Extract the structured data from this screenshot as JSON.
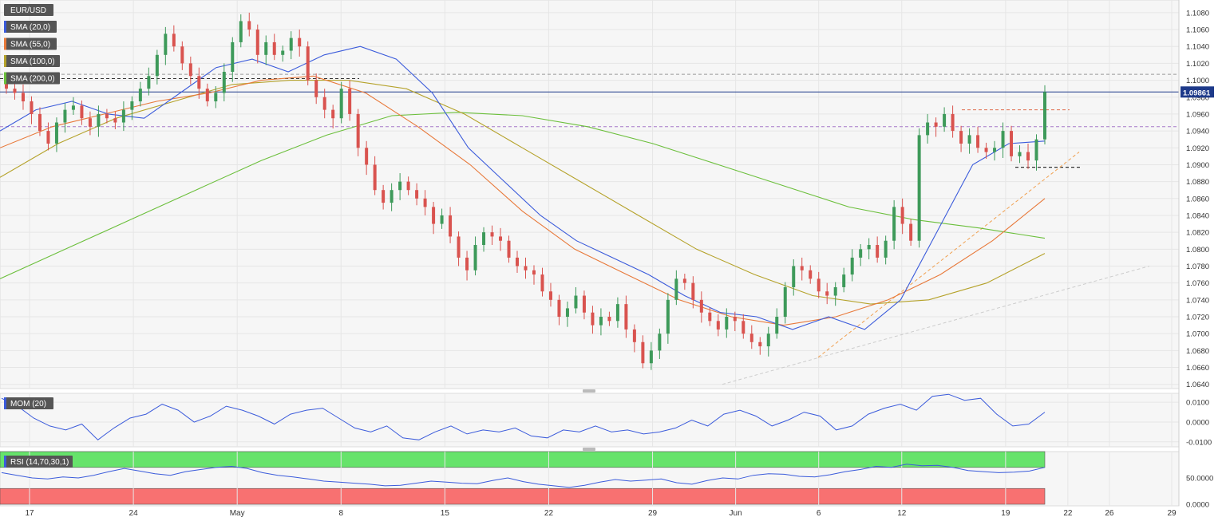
{
  "chart_data": [
    {
      "type": "candlestick",
      "title": "EUR/USD",
      "indicators": [
        {
          "name": "SMA (20,0)",
          "color": "#3b5bdb"
        },
        {
          "name": "SMA (55,0)",
          "color": "#e8793a"
        },
        {
          "name": "SMA (100,0)",
          "color": "#b5a22a"
        },
        {
          "name": "SMA (200,0)",
          "color": "#6bbf3b"
        }
      ],
      "ylim": [
        1.0635,
        1.1095
      ],
      "y_ticks": [
        "1.0640",
        "1.0660",
        "1.0680",
        "1.0700",
        "1.0720",
        "1.0740",
        "1.0760",
        "1.0780",
        "1.0800",
        "1.0820",
        "1.0840",
        "1.0860",
        "1.0880",
        "1.0900",
        "1.0920",
        "1.0940",
        "1.0960",
        "1.0980",
        "1.1000",
        "1.1020",
        "1.1040",
        "1.1060",
        "1.1080"
      ],
      "x_ticks": [
        {
          "label": "17",
          "day": 0
        },
        {
          "label": "24",
          "day": 5
        },
        {
          "label": "May",
          "day": 10
        },
        {
          "label": "8",
          "day": 15
        },
        {
          "label": "15",
          "day": 20
        },
        {
          "label": "22",
          "day": 25
        },
        {
          "label": "29",
          "day": 30
        },
        {
          "label": "Jun",
          "day": 34
        },
        {
          "label": "6",
          "day": 38
        },
        {
          "label": "12",
          "day": 42
        },
        {
          "label": "19",
          "day": 47
        },
        {
          "label": "22",
          "day": 50
        },
        {
          "label": "26",
          "day": 52
        },
        {
          "label": "29",
          "day": 55
        }
      ],
      "last_price": "1.09861",
      "colors": {
        "up": "#3e9a5a",
        "down": "#d9534f",
        "price_line": "#1e3a8a"
      },
      "horizontal_levels": [
        1.1007,
        1.1002,
        1.0945
      ],
      "sma_20": [
        1.094,
        1.0965,
        1.0975,
        1.096,
        1.0955,
        1.0985,
        1.1015,
        1.1025,
        1.101,
        1.103,
        1.104,
        1.1025,
        1.0985,
        1.092,
        1.088,
        1.084,
        1.081,
        1.079,
        1.077,
        1.0745,
        1.0725,
        1.072,
        1.0705,
        1.072,
        1.0705,
        1.074,
        1.082,
        1.09,
        1.0925,
        1.0928
      ],
      "sma_55": [
        1.092,
        1.0945,
        1.096,
        1.0975,
        1.0985,
        1.1,
        1.1005,
        1.0985,
        1.0945,
        1.09,
        1.0845,
        1.08,
        1.077,
        1.074,
        1.072,
        1.071,
        1.072,
        1.074,
        1.077,
        1.081,
        1.086
      ],
      "sma_100": [
        1.0885,
        1.0925,
        1.0955,
        1.0975,
        1.0995,
        1.1,
        1.1,
        1.099,
        1.096,
        1.092,
        1.088,
        1.084,
        1.08,
        1.077,
        1.0745,
        1.0735,
        1.074,
        1.076,
        1.0795
      ],
      "sma_200": [
        1.0765,
        1.08,
        1.0835,
        1.087,
        1.0905,
        1.0935,
        1.0958,
        1.0962,
        1.0958,
        1.0945,
        1.0925,
        1.09,
        1.0875,
        1.085,
        1.0835,
        1.0825,
        1.0813
      ],
      "closes": [
        1.099,
        1.0985,
        1.0975,
        1.096,
        1.094,
        1.0925,
        1.095,
        1.0965,
        1.097,
        1.0955,
        1.0945,
        1.096,
        1.0955,
        1.095,
        1.0965,
        1.0975,
        1.099,
        1.1005,
        1.103,
        1.1055,
        1.104,
        1.102,
        1.1005,
        1.099,
        1.0975,
        1.0985,
        1.101,
        1.1045,
        1.107,
        1.106,
        1.103,
        1.1045,
        1.103,
        1.1035,
        1.105,
        1.104,
        1.1,
        1.098,
        1.0965,
        1.0955,
        1.099,
        1.096,
        1.092,
        1.09,
        1.087,
        1.0855,
        1.087,
        1.088,
        1.087,
        1.086,
        1.085,
        1.083,
        1.084,
        1.0815,
        1.079,
        1.0775,
        1.0805,
        1.082,
        1.0815,
        1.081,
        1.079,
        1.078,
        1.0775,
        1.077,
        1.075,
        1.074,
        1.072,
        1.073,
        1.0745,
        1.0725,
        1.071,
        1.072,
        1.0715,
        1.0735,
        1.0705,
        1.069,
        1.0665,
        1.068,
        1.07,
        1.074,
        1.0765,
        1.076,
        1.074,
        1.0725,
        1.0715,
        1.0705,
        1.072,
        1.0715,
        1.07,
        1.069,
        1.0685,
        1.07,
        1.072,
        1.0755,
        1.078,
        1.0775,
        1.0765,
        1.075,
        1.0745,
        1.0755,
        1.077,
        1.079,
        1.08,
        1.0805,
        1.079,
        1.081,
        1.085,
        1.083,
        1.081,
        1.0935,
        1.095,
        1.0945,
        1.096,
        1.094,
        1.0925,
        1.0935,
        1.092,
        1.0915,
        1.092,
        1.094,
        1.091,
        1.0915,
        1.0905,
        1.093,
        1.0986
      ]
    },
    {
      "type": "line",
      "title": "MOM (20)",
      "y_ticks": [
        "0.0100",
        "0.0000",
        "-0.0100"
      ],
      "ylim": [
        -0.0125,
        0.0145
      ],
      "color": "#3b5bdb",
      "values": [
        0.012,
        0.008,
        0.002,
        -0.002,
        -0.004,
        -0.001,
        -0.009,
        -0.003,
        0.002,
        0.004,
        0.009,
        0.006,
        0.0,
        0.003,
        0.008,
        0.006,
        0.003,
        -0.001,
        0.004,
        0.006,
        0.007,
        0.002,
        -0.003,
        -0.005,
        -0.002,
        -0.008,
        -0.009,
        -0.005,
        -0.002,
        -0.006,
        -0.004,
        -0.005,
        -0.003,
        -0.007,
        -0.008,
        -0.004,
        -0.005,
        -0.002,
        -0.005,
        -0.004,
        -0.006,
        -0.005,
        -0.003,
        0.001,
        -0.002,
        0.004,
        0.006,
        0.003,
        -0.002,
        0.001,
        0.005,
        0.003,
        -0.004,
        -0.002,
        0.004,
        0.007,
        0.009,
        0.006,
        0.013,
        0.014,
        0.011,
        0.012,
        0.004,
        -0.002,
        -0.001,
        0.005
      ]
    },
    {
      "type": "line",
      "title": "RSI (14,70,30,1)",
      "y_ticks": [
        "50.0000",
        "0.0000"
      ],
      "ylim": [
        -3,
        100
      ],
      "overbought": 70,
      "oversold": 30,
      "colors": {
        "line": "#3b5bdb",
        "overbought_band": "#66e36b",
        "oversold_band": "#f87171"
      },
      "values": [
        60,
        55,
        50,
        48,
        52,
        50,
        55,
        62,
        68,
        63,
        58,
        55,
        62,
        66,
        70,
        72,
        68,
        60,
        55,
        52,
        48,
        44,
        42,
        40,
        38,
        35,
        36,
        40,
        44,
        42,
        40,
        39,
        45,
        50,
        43,
        38,
        35,
        32,
        36,
        42,
        47,
        44,
        46,
        48,
        41,
        38,
        45,
        50,
        48,
        55,
        58,
        57,
        53,
        52,
        56,
        62,
        66,
        72,
        70,
        76,
        73,
        74,
        70,
        64,
        62,
        60,
        61,
        63,
        70
      ]
    }
  ]
}
